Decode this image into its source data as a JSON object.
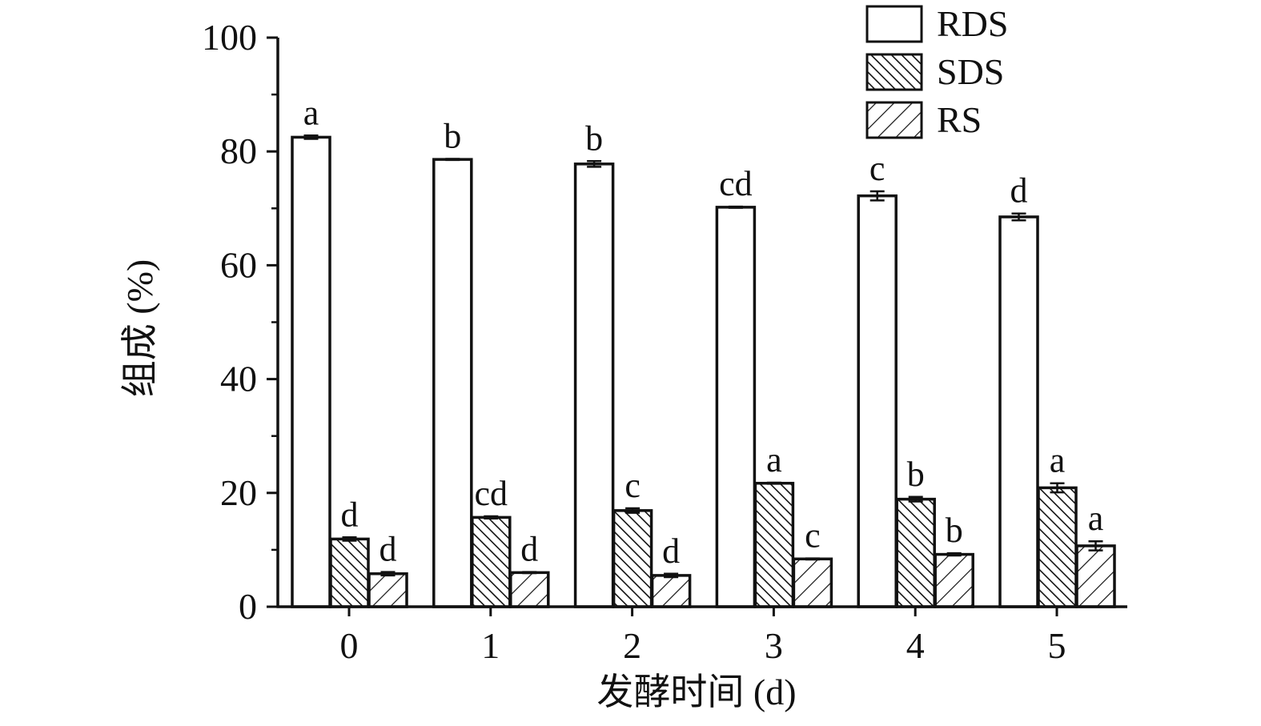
{
  "chart_data": {
    "type": "bar",
    "xlabel": "发酵时间 (d)",
    "ylabel": "组成 (%)",
    "ylim": [
      0,
      100
    ],
    "yticks": [
      0,
      20,
      40,
      60,
      80,
      100
    ],
    "categories": [
      "0",
      "1",
      "2",
      "3",
      "4",
      "5"
    ],
    "legend_position": "top-right",
    "series": [
      {
        "name": "RDS",
        "pattern": "none",
        "values": [
          82.5,
          78.6,
          77.8,
          70.2,
          72.2,
          68.5
        ],
        "errors": [
          0.3,
          0.1,
          0.5,
          0.1,
          0.8,
          0.6
        ],
        "letters": [
          "a",
          "b",
          "b",
          "cd",
          "c",
          "d"
        ]
      },
      {
        "name": "SDS",
        "pattern": "dense-hatch",
        "values": [
          11.9,
          15.7,
          16.9,
          21.7,
          18.9,
          20.9
        ],
        "errors": [
          0.3,
          0.2,
          0.4,
          0.1,
          0.4,
          0.8
        ],
        "letters": [
          "d",
          "cd",
          "c",
          "a",
          "b",
          "a"
        ]
      },
      {
        "name": "RS",
        "pattern": "sparse-hatch",
        "values": [
          5.8,
          6.0,
          5.5,
          8.4,
          9.2,
          10.7
        ],
        "errors": [
          0.3,
          0.1,
          0.3,
          0.1,
          0.2,
          0.8
        ],
        "letters": [
          "d",
          "d",
          "d",
          "c",
          "b",
          "a"
        ]
      }
    ]
  }
}
